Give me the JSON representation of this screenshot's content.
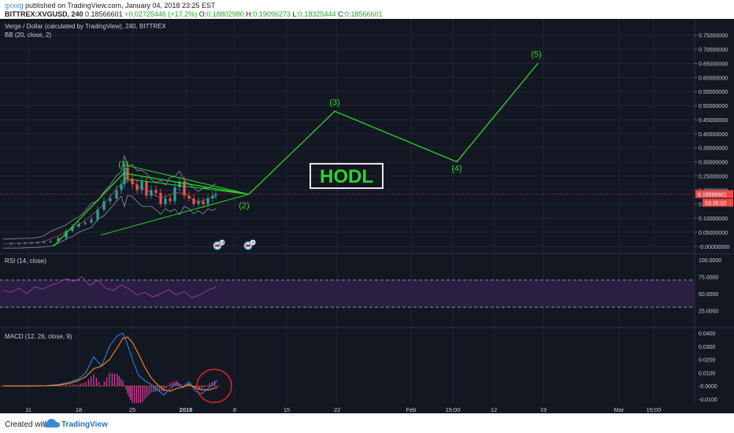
{
  "header": {
    "author": "gxxxg",
    "published": "published on TradingView.com, January 04, 2018 23:25 EST",
    "symbol": "BITTREX:XVGUSD, 240",
    "last": "0.18566601",
    "change": "+0.02725446 (+17.2%)",
    "o_label": "O:",
    "o_value": "0.18802980",
    "h_label": "H:",
    "h_value": "0.19096273",
    "l_label": "L:",
    "l_value": "0.18325444",
    "c_label": "C:",
    "c_value": "0.18566601"
  },
  "footer": {
    "created_with": "Created with",
    "brand": "TradingView",
    "logo_icon": "tradingview-cloud-icon"
  },
  "colors": {
    "background": "#131722",
    "grid": "#1f2535",
    "wave": "#2bd62b",
    "candle_up": "#26a69a",
    "candle_down": "#ef5350",
    "rsi": "#8e3c9c",
    "macd": "#2d7ee0",
    "signal": "#ff8a1f",
    "hist": "#e040a0",
    "price_label": "#e84a4a",
    "hodl": "#2bd62b",
    "circle": "#e32222"
  },
  "chart_data": [
    {
      "type": "line",
      "title": "Verge / Dollar (calculated by TradingView), 240, BITTREX",
      "indicator": "BB (20, close, 2)",
      "x_tick_labels": [
        "11",
        "18",
        "25",
        "2018",
        "8",
        "15",
        "22",
        "Feb",
        "15:00",
        "12",
        "19",
        "Mar",
        "15:00"
      ],
      "y_tick_labels": [
        "0.75000000",
        "0.70000000",
        "0.65000000",
        "0.60000000",
        "0.55000000",
        "0.50000000",
        "0.45000000",
        "0.40000000",
        "0.35000000",
        "0.30000000",
        "0.25000000",
        "0.20000000",
        "0.15000000",
        "0.10000000",
        "0.05000000",
        "-0.00000000"
      ],
      "ylim": [
        -0.02,
        0.78
      ],
      "last_price_label": "0.18566601",
      "countdown_label": "03:35:02",
      "price_x": [
        0,
        10,
        20,
        28,
        36,
        44,
        52,
        60,
        70,
        80,
        88,
        96,
        104,
        112,
        120,
        128,
        136,
        144,
        150,
        154,
        158,
        164,
        170,
        176,
        182,
        188,
        194,
        200,
        206,
        212,
        218,
        224,
        230,
        236,
        242,
        248,
        254,
        260,
        266,
        270
      ],
      "price": [
        0.01,
        0.01,
        0.01,
        0.011,
        0.012,
        0.013,
        0.015,
        0.018,
        0.03,
        0.055,
        0.07,
        0.08,
        0.085,
        0.095,
        0.13,
        0.16,
        0.17,
        0.2,
        0.22,
        0.28,
        0.24,
        0.22,
        0.2,
        0.23,
        0.18,
        0.2,
        0.19,
        0.15,
        0.17,
        0.16,
        0.21,
        0.23,
        0.18,
        0.17,
        0.15,
        0.16,
        0.15,
        0.17,
        0.18,
        0.186
      ],
      "wave_labels": [
        "(1)",
        "(2)",
        "(3)",
        "(4)",
        "(5)"
      ],
      "wave_points": [
        [
          68,
          0.0
        ],
        [
          157,
          0.26
        ],
        [
          316,
          0.185
        ],
        [
          425,
          0.48
        ],
        [
          580,
          0.3
        ],
        [
          683,
          0.65
        ]
      ],
      "triangle_apex": [
        316,
        0.185
      ],
      "triangle_upper_start": [
        157,
        0.29
      ],
      "triangle_lower_start": [
        68,
        0.0
      ],
      "annotation_text": "HODL",
      "event_markers": [
        {
          "x": 276,
          "label": "14"
        },
        {
          "x": 315,
          "label": "4"
        }
      ]
    },
    {
      "type": "line",
      "title": "RSI (14, close)",
      "y_tick_labels": [
        "100.0000",
        "75.0000",
        "50.0000",
        "25.0000"
      ],
      "ylim": [
        0,
        100
      ],
      "band": [
        30,
        70
      ],
      "x": [
        0,
        10,
        20,
        30,
        40,
        50,
        60,
        70,
        80,
        90,
        100,
        110,
        120,
        130,
        140,
        150,
        160,
        170,
        180,
        190,
        200,
        210,
        220,
        230,
        240,
        250,
        260,
        270
      ],
      "values": [
        55,
        52,
        58,
        50,
        60,
        57,
        62,
        66,
        72,
        68,
        75,
        62,
        70,
        58,
        55,
        63,
        57,
        48,
        52,
        45,
        50,
        56,
        48,
        53,
        44,
        48,
        55,
        60
      ]
    },
    {
      "type": "line",
      "title": "MACD (12, 26, close, 9)",
      "y_tick_labels": [
        "0.0400",
        "0.0300",
        "0.0200",
        "0.0100",
        "-0.0000",
        "-0.0100"
      ],
      "ylim": [
        -0.013,
        0.043
      ],
      "x": [
        0,
        20,
        40,
        55,
        70,
        85,
        95,
        105,
        115,
        125,
        135,
        145,
        152,
        158,
        164,
        172,
        180,
        188,
        196,
        204,
        212,
        220,
        228,
        236,
        244,
        252,
        262,
        272
      ],
      "macd": [
        0,
        0,
        0,
        0.0003,
        0.001,
        0.003,
        0.005,
        0.01,
        0.022,
        0.015,
        0.03,
        0.038,
        0.04,
        0.031,
        0.02,
        0.008,
        0.004,
        0.001,
        -0.003,
        -0.007,
        -0.002,
        0.002,
        -0.001,
        0.003,
        -0.004,
        -0.006,
        -0.001,
        0.004
      ],
      "signal": [
        0,
        0,
        0,
        0.0001,
        0.0005,
        0.002,
        0.004,
        0.007,
        0.013,
        0.015,
        0.02,
        0.029,
        0.036,
        0.037,
        0.033,
        0.024,
        0.014,
        0.006,
        0.001,
        -0.003,
        -0.004,
        -0.002,
        -0.001,
        0.001,
        -0.001,
        -0.003,
        -0.003,
        -0.001
      ],
      "highlight_circle_x": 272,
      "highlight_circle_y": 0.0
    }
  ]
}
